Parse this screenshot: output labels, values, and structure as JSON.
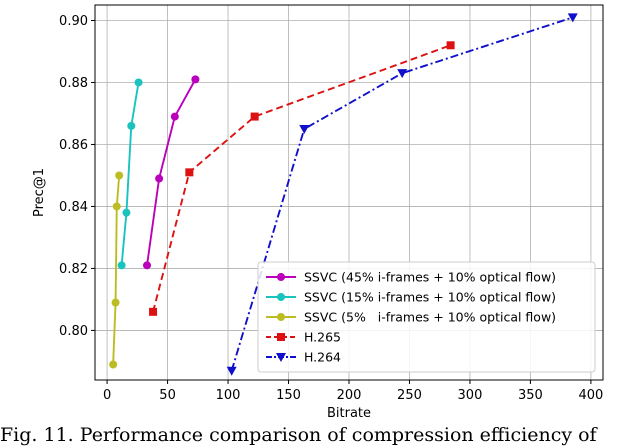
{
  "chart_data": {
    "type": "line",
    "xlabel": "Bitrate",
    "ylabel": "Prec@1",
    "xlim": [
      -10,
      410
    ],
    "ylim": [
      0.784,
      0.905
    ],
    "xticks": [
      0,
      50,
      100,
      150,
      200,
      250,
      300,
      350,
      400
    ],
    "yticks": [
      0.8,
      0.82,
      0.84,
      0.86,
      0.88,
      0.9
    ],
    "xtick_labels": [
      "0",
      "50",
      "100",
      "150",
      "200",
      "250",
      "300",
      "350",
      "400"
    ],
    "ytick_labels": [
      "0.80",
      "0.82",
      "0.84",
      "0.86",
      "0.88",
      "0.90"
    ],
    "grid": true,
    "legend_position": "bottom-right",
    "series": [
      {
        "name": "SSVC (45% i-frames + 10% optical flow)",
        "color": "#bb00bb",
        "marker": "circle",
        "linestyle": "solid",
        "x": [
          33,
          43,
          56,
          73
        ],
        "y": [
          0.821,
          0.849,
          0.869,
          0.881
        ]
      },
      {
        "name": "SSVC (15% i-frames + 10% optical flow)",
        "color": "#1bc3be",
        "marker": "circle",
        "linestyle": "solid",
        "x": [
          12,
          16,
          20,
          26
        ],
        "y": [
          0.821,
          0.838,
          0.866,
          0.88
        ]
      },
      {
        "name": "SSVC (5%   i-frames + 10% optical flow)",
        "color": "#bcbd22",
        "marker": "circle",
        "linestyle": "solid",
        "x": [
          5,
          7,
          8,
          10
        ],
        "y": [
          0.789,
          0.809,
          0.84,
          0.85
        ]
      },
      {
        "name": "H.265",
        "color": "#dd1111",
        "marker": "square",
        "linestyle": "dashed",
        "x": [
          38,
          68,
          122,
          284
        ],
        "y": [
          0.806,
          0.851,
          0.869,
          0.892
        ]
      },
      {
        "name": "H.264",
        "color": "#1010cc",
        "marker": "triangle-down",
        "linestyle": "dashdot",
        "x": [
          103,
          163,
          244,
          385
        ],
        "y": [
          0.787,
          0.865,
          0.883,
          0.901
        ]
      }
    ]
  },
  "caption": {
    "text": "Fig. 11. Performance comparison of compression efficiency of"
  }
}
